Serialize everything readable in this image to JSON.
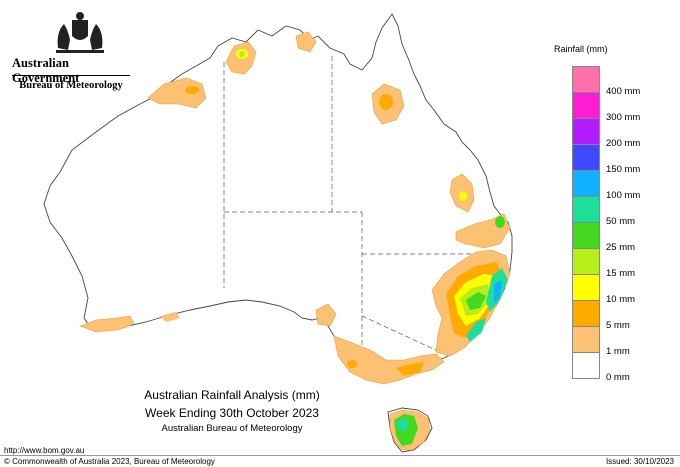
{
  "header": {
    "government": "Australian Government",
    "agency": "Bureau of Meteorology"
  },
  "legend": {
    "title": "Rainfall (mm)",
    "classes": [
      {
        "label": "",
        "color": "#ff6fae"
      },
      {
        "label": "400 mm",
        "color": "#ff1dd2"
      },
      {
        "label": "300 mm",
        "color": "#b31cff"
      },
      {
        "label": "200 mm",
        "color": "#3f4aff"
      },
      {
        "label": "150 mm",
        "color": "#11b1ff"
      },
      {
        "label": "100 mm",
        "color": "#1ddf9a"
      },
      {
        "label": "50 mm",
        "color": "#43d91e"
      },
      {
        "label": "25 mm",
        "color": "#b6ee1a"
      },
      {
        "label": "15 mm",
        "color": "#ffff00"
      },
      {
        "label": "10 mm",
        "color": "#ffaa00"
      },
      {
        "label": "5 mm",
        "color": "#fdc173"
      },
      {
        "label": "1 mm",
        "color": "#ffffff"
      },
      {
        "label": "0 mm",
        "color": ""
      }
    ]
  },
  "caption": {
    "line1": "Australian Rainfall Analysis (mm)",
    "line2": "Week Ending 30th October 2023",
    "line3": "Australian Bureau of Meteorology"
  },
  "footer": {
    "url": "http://www.bom.gov.au",
    "copyright": "© Commonwealth of Australia 2023, Bureau of Meteorology",
    "issued": "Issued: 30/10/2023"
  }
}
